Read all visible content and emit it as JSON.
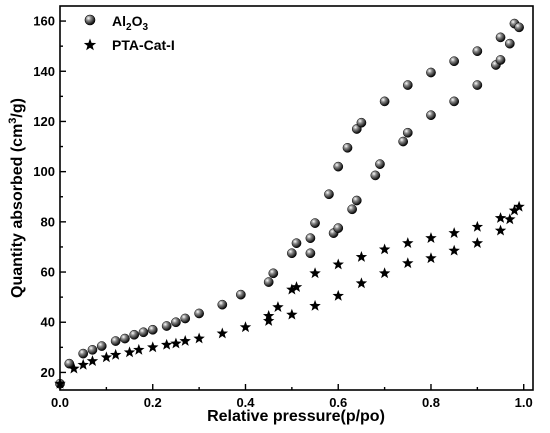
{
  "chart_data": {
    "type": "scatter",
    "xlabel": "Relative pressure(p/po)",
    "ylabel": {
      "prefix": "Quantity absorbed (cm",
      "sup": "3",
      "suffix": "/g)"
    },
    "xlim": [
      0.0,
      1.02
    ],
    "ylim": [
      13,
      166
    ],
    "xticks": [
      "0.0",
      "0.2",
      "0.4",
      "0.6",
      "0.8",
      "1.0"
    ],
    "xtick_values": [
      0.0,
      0.2,
      0.4,
      0.6,
      0.8,
      1.0
    ],
    "yticks": [
      "20",
      "40",
      "60",
      "80",
      "100",
      "120",
      "140",
      "160"
    ],
    "ytick_values": [
      20,
      40,
      60,
      80,
      100,
      120,
      140,
      160
    ],
    "legend_position": "top-left",
    "series": [
      {
        "name_parts": {
          "main": "Al",
          "sub1": "2",
          "mid": "O",
          "sub2": "3"
        },
        "marker": "sphere",
        "color": "#000000",
        "points": [
          [
            0.0,
            15.5
          ],
          [
            0.02,
            23.5
          ],
          [
            0.05,
            27.5
          ],
          [
            0.07,
            29
          ],
          [
            0.09,
            30.5
          ],
          [
            0.12,
            32.5
          ],
          [
            0.14,
            33.5
          ],
          [
            0.16,
            35
          ],
          [
            0.18,
            36
          ],
          [
            0.2,
            37
          ],
          [
            0.23,
            38.5
          ],
          [
            0.25,
            40
          ],
          [
            0.27,
            41.5
          ],
          [
            0.3,
            43.5
          ],
          [
            0.35,
            47
          ],
          [
            0.39,
            51
          ],
          [
            0.45,
            56
          ],
          [
            0.46,
            59.5
          ],
          [
            0.5,
            67.5
          ],
          [
            0.51,
            71.5
          ],
          [
            0.54,
            67.5
          ],
          [
            0.54,
            73.5
          ],
          [
            0.55,
            79.5
          ],
          [
            0.58,
            91
          ],
          [
            0.59,
            75.5
          ],
          [
            0.6,
            77.5
          ],
          [
            0.6,
            102
          ],
          [
            0.62,
            109.5
          ],
          [
            0.63,
            85
          ],
          [
            0.64,
            88.5
          ],
          [
            0.64,
            117
          ],
          [
            0.65,
            119.5
          ],
          [
            0.68,
            98.5
          ],
          [
            0.69,
            103
          ],
          [
            0.7,
            128
          ],
          [
            0.74,
            112
          ],
          [
            0.75,
            115.5
          ],
          [
            0.75,
            134.5
          ],
          [
            0.8,
            122.5
          ],
          [
            0.8,
            139.5
          ],
          [
            0.85,
            128
          ],
          [
            0.85,
            144
          ],
          [
            0.9,
            134.5
          ],
          [
            0.9,
            148
          ],
          [
            0.94,
            142.5
          ],
          [
            0.95,
            144.5
          ],
          [
            0.95,
            153.5
          ],
          [
            0.97,
            151
          ],
          [
            0.98,
            159
          ],
          [
            0.99,
            157.5
          ]
        ]
      },
      {
        "name": "PTA-Cat-I",
        "marker": "star",
        "color": "#000000",
        "points": [
          [
            0.0,
            15.5
          ],
          [
            0.03,
            21.5
          ],
          [
            0.05,
            23
          ],
          [
            0.07,
            24.5
          ],
          [
            0.1,
            26
          ],
          [
            0.12,
            27
          ],
          [
            0.15,
            28
          ],
          [
            0.17,
            29
          ],
          [
            0.2,
            30
          ],
          [
            0.23,
            31
          ],
          [
            0.25,
            31.5
          ],
          [
            0.27,
            32.5
          ],
          [
            0.3,
            33.5
          ],
          [
            0.35,
            35.5
          ],
          [
            0.4,
            38
          ],
          [
            0.45,
            40.5
          ],
          [
            0.45,
            42.5
          ],
          [
            0.47,
            46
          ],
          [
            0.5,
            43
          ],
          [
            0.5,
            53
          ],
          [
            0.51,
            54
          ],
          [
            0.55,
            46.5
          ],
          [
            0.55,
            59.5
          ],
          [
            0.6,
            50.5
          ],
          [
            0.6,
            63
          ],
          [
            0.65,
            55.5
          ],
          [
            0.65,
            66
          ],
          [
            0.7,
            59.5
          ],
          [
            0.7,
            69
          ],
          [
            0.75,
            63.5
          ],
          [
            0.75,
            71.5
          ],
          [
            0.8,
            65.5
          ],
          [
            0.8,
            73.5
          ],
          [
            0.85,
            68.5
          ],
          [
            0.85,
            75.5
          ],
          [
            0.9,
            71.5
          ],
          [
            0.9,
            78
          ],
          [
            0.95,
            76.5
          ],
          [
            0.95,
            81.5
          ],
          [
            0.97,
            81
          ],
          [
            0.98,
            84.5
          ],
          [
            0.99,
            86
          ]
        ]
      }
    ]
  }
}
